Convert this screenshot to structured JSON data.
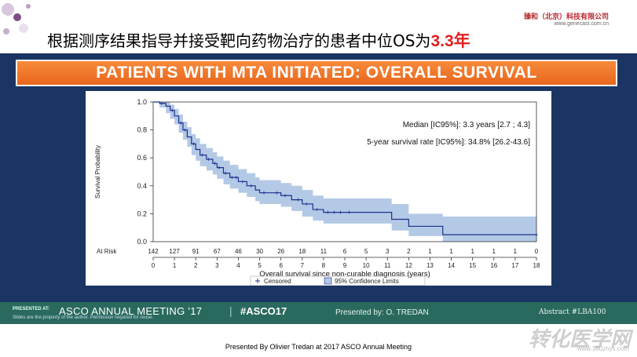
{
  "header": {
    "headline_prefix": "根据测序结果指导并接受靶向药物治疗的患者中位OS为",
    "headline_highlight": "3.3年",
    "company_name": "臻和（北京）科技有限公司",
    "company_url": "www.genecast.com.cn"
  },
  "banner": {
    "title": "PATIENTS WITH MTA INITIATED: OVERALL SURVIVAL"
  },
  "annotations": {
    "median": "Median [IC95%]: 3.3 years [2.7 ; 4.3]",
    "five_year": "5-year survival rate [IC95%]: 34.8% [26.2-43.6]"
  },
  "legend": {
    "censored": "Censored",
    "ci": "95% Confidence Limits"
  },
  "footer": {
    "presented_at": "PRESENTED AT:",
    "meeting": "ASCO ANNUAL MEETING '17",
    "separator": "|",
    "hashtag": "#ASCO17",
    "disclaimer": "Slides are the property of the author. Permission required for reuse.",
    "presented_by": "Presented by: O. TREDAN",
    "abstract": "Abstract #LBA100"
  },
  "caption": "Presented By Olivier Tredan at 2017 ASCO Annual Meeting",
  "watermark": {
    "text": "转化医学网",
    "url": "www.360zhyx.com"
  },
  "colors": {
    "curve": "#1f2f8a",
    "ci_band": "#b3c9e6",
    "banner": "#f07a2c",
    "slide_bg": "#1a3563",
    "footer_bg": "#2a6a5e"
  },
  "chart_data": {
    "type": "line",
    "title": "",
    "xlabel": "Overall survival since non-curable diagnosis (years)",
    "ylabel": "Survival Probability",
    "xlim": [
      0,
      18
    ],
    "ylim": [
      0,
      1
    ],
    "x_ticks": [
      0,
      1,
      2,
      3,
      4,
      5,
      6,
      7,
      8,
      9,
      10,
      11,
      12,
      13,
      14,
      15,
      16,
      17,
      18
    ],
    "y_ticks": [
      "0.0",
      "0.2",
      "0.4",
      "0.6",
      "0.8",
      "1.0"
    ],
    "at_risk_label": "At Risk",
    "at_risk": [
      142,
      127,
      91,
      67,
      46,
      30,
      26,
      18,
      11,
      6,
      5,
      3,
      2,
      1,
      1,
      1,
      1,
      1,
      0
    ],
    "series": [
      {
        "name": "Survival estimate",
        "x": [
          0,
          0.3,
          0.6,
          0.8,
          1.0,
          1.2,
          1.4,
          1.6,
          1.8,
          2.0,
          2.2,
          2.5,
          2.8,
          3.0,
          3.3,
          3.6,
          4.0,
          4.4,
          4.8,
          5.0,
          5.5,
          6.0,
          6.5,
          7.0,
          7.5,
          8.0,
          9.0,
          10.0,
          11.0,
          11.2,
          12.0,
          13.5,
          13.6,
          18.0
        ],
        "y": [
          1.0,
          0.99,
          0.97,
          0.94,
          0.9,
          0.85,
          0.8,
          0.75,
          0.7,
          0.66,
          0.62,
          0.59,
          0.56,
          0.53,
          0.49,
          0.46,
          0.43,
          0.4,
          0.37,
          0.35,
          0.35,
          0.33,
          0.3,
          0.27,
          0.23,
          0.21,
          0.21,
          0.21,
          0.21,
          0.16,
          0.11,
          0.11,
          0.05,
          0.05
        ]
      }
    ],
    "ci_upper": [
      1.0,
      1.0,
      1.0,
      0.98,
      0.95,
      0.91,
      0.86,
      0.82,
      0.77,
      0.74,
      0.7,
      0.67,
      0.64,
      0.61,
      0.58,
      0.55,
      0.52,
      0.49,
      0.46,
      0.44,
      0.44,
      0.42,
      0.4,
      0.37,
      0.33,
      0.31,
      0.31,
      0.31,
      0.31,
      0.27,
      0.2,
      0.2,
      0.18,
      0.18
    ],
    "ci_lower": [
      1.0,
      0.96,
      0.92,
      0.88,
      0.84,
      0.78,
      0.73,
      0.68,
      0.62,
      0.58,
      0.54,
      0.51,
      0.48,
      0.45,
      0.41,
      0.38,
      0.35,
      0.32,
      0.29,
      0.27,
      0.27,
      0.25,
      0.22,
      0.18,
      0.15,
      0.13,
      0.13,
      0.13,
      0.13,
      0.08,
      0.04,
      0.04,
      0.0,
      0.0
    ],
    "censored_x": [
      0.4,
      0.9,
      1.3,
      1.5,
      1.9,
      2.3,
      2.6,
      2.9,
      3.1,
      3.4,
      3.7,
      3.9,
      4.2,
      4.6,
      5.2,
      5.8,
      6.2,
      6.8,
      7.2,
      7.7,
      8.2,
      8.5,
      8.8,
      9.2,
      18.0
    ]
  }
}
